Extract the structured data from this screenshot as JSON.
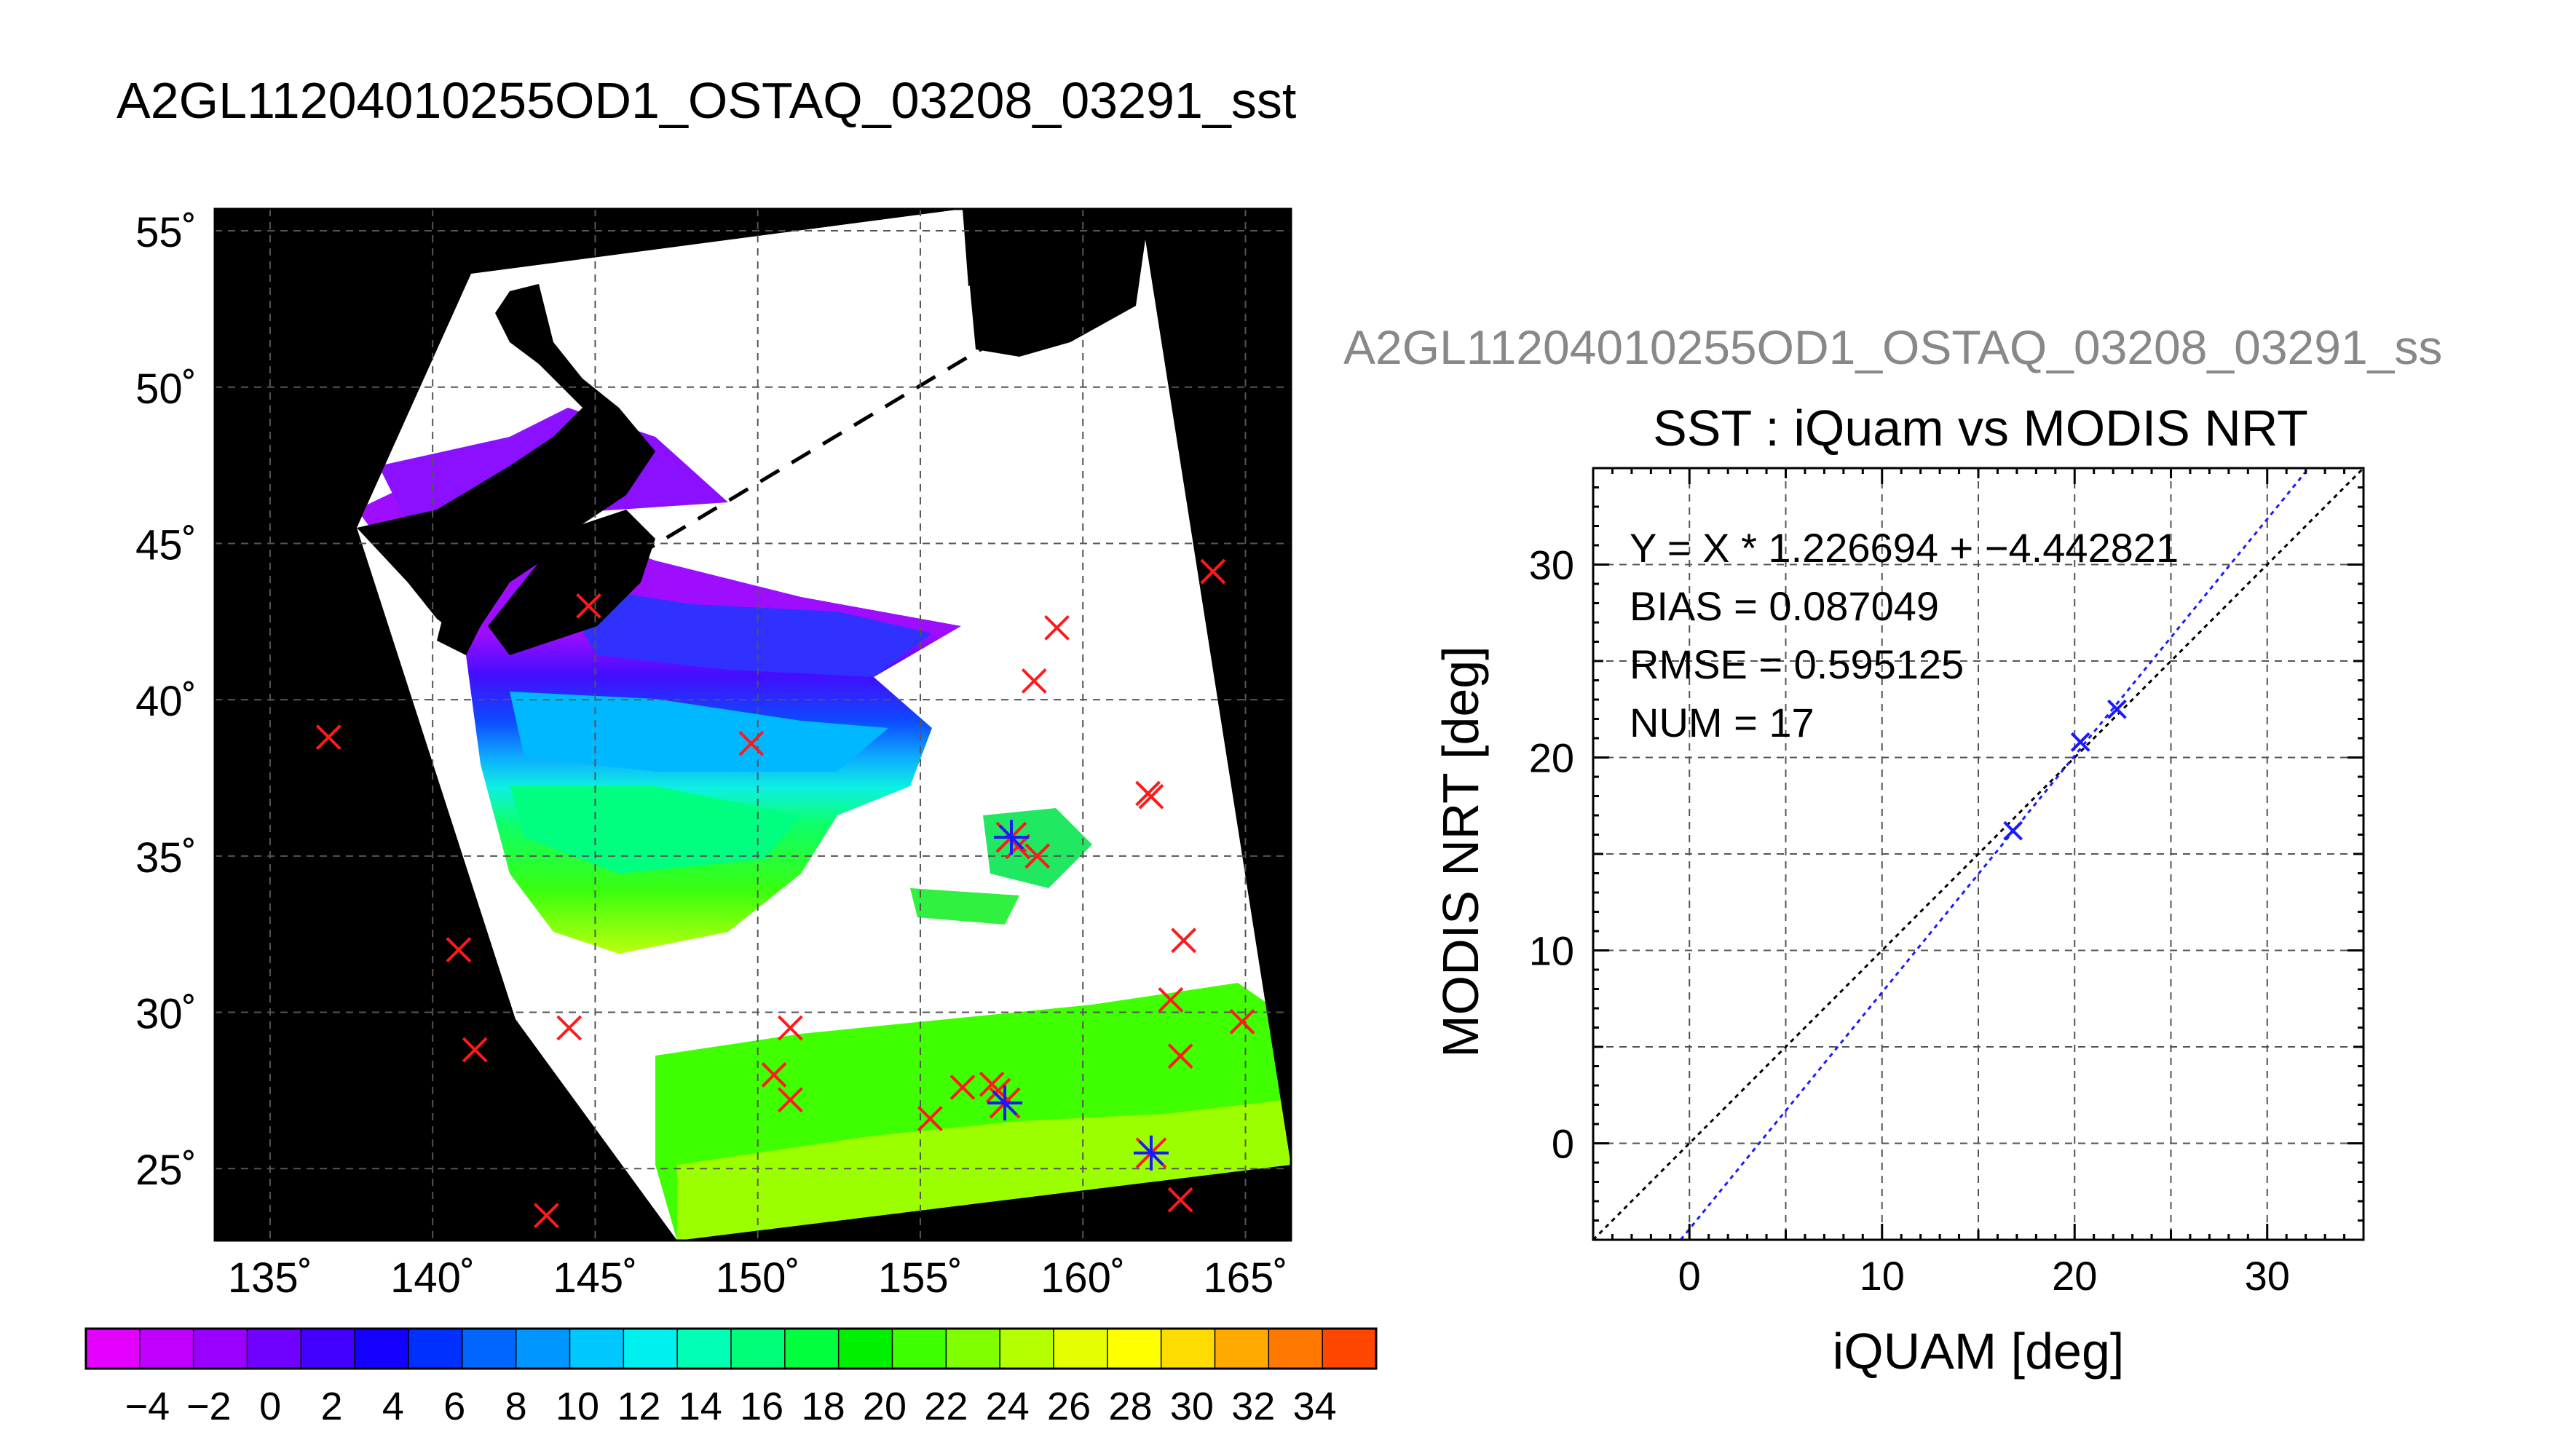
{
  "main_title": "A2GL11204010255OD1_OSTAQ_03208_03291_sst",
  "map": {
    "lat_labels": [
      "55˚",
      "50˚",
      "45˚",
      "40˚",
      "35˚",
      "30˚",
      "25˚"
    ],
    "lon_labels": [
      "135˚",
      "140˚",
      "145˚",
      "150˚",
      "155˚",
      "160˚",
      "165˚"
    ],
    "lon_range": [
      133.3,
      166.4
    ],
    "lat_range": [
      22.7,
      55.7
    ],
    "red_x_markers": [
      [
        136.8,
        38.8
      ],
      [
        144.8,
        43.0
      ],
      [
        149.8,
        38.6
      ],
      [
        158.5,
        40.6
      ],
      [
        159.2,
        42.3
      ],
      [
        164.0,
        44.1
      ],
      [
        162.0,
        37.0
      ],
      [
        162.1,
        36.9
      ],
      [
        158.6,
        35.0
      ],
      [
        158.0,
        35.3
      ],
      [
        163.1,
        32.3
      ],
      [
        162.7,
        30.4
      ],
      [
        164.9,
        29.7
      ],
      [
        163.0,
        28.6
      ],
      [
        140.8,
        32.0
      ],
      [
        141.3,
        28.8
      ],
      [
        144.2,
        29.5
      ],
      [
        151.0,
        29.5
      ],
      [
        150.5,
        28.0
      ],
      [
        151.0,
        27.2
      ],
      [
        155.3,
        26.6
      ],
      [
        156.3,
        27.6
      ],
      [
        157.2,
        27.7
      ],
      [
        157.4,
        27.5
      ],
      [
        163.0,
        24.0
      ],
      [
        143.5,
        23.5
      ]
    ],
    "blue_star_markers": [
      [
        157.8,
        35.6
      ],
      [
        162.1,
        25.5
      ],
      [
        157.6,
        27.1
      ]
    ]
  },
  "colorbar": {
    "tick_labels": [
      "−4",
      "−2",
      "0",
      "2",
      "4",
      "6",
      "8",
      "10",
      "12",
      "14",
      "16",
      "18",
      "20",
      "22",
      "24",
      "26",
      "28",
      "30",
      "32",
      "34"
    ],
    "colors": [
      "#e400ff",
      "#c000ff",
      "#9a00ff",
      "#7000ff",
      "#4400ff",
      "#1400ff",
      "#0030ff",
      "#0066ff",
      "#0096ff",
      "#00c8ff",
      "#00f0f0",
      "#00ffb4",
      "#00ff78",
      "#00ff3c",
      "#00f000",
      "#40ff00",
      "#80ff00",
      "#b4ff00",
      "#e6ff00",
      "#ffff00",
      "#ffdc00",
      "#ffaa00",
      "#ff7800",
      "#ff4600"
    ]
  },
  "scatter_header": "A2GL11204010255OD1_OSTAQ_03208_03291_ss",
  "chart_data": {
    "type": "scatter",
    "title": "SST : iQuam vs MODIS NRT",
    "xlabel": "iQUAM [deg]",
    "ylabel": "MODIS NRT [deg]",
    "xlim": [
      -5,
      35
    ],
    "ylim": [
      -5,
      35
    ],
    "x_ticks": [
      "0",
      "10",
      "20",
      "30"
    ],
    "y_ticks": [
      "0",
      "10",
      "20",
      "30"
    ],
    "grid": true,
    "points": [
      [
        16.8,
        16.2
      ],
      [
        20.3,
        20.8
      ],
      [
        22.2,
        22.5
      ]
    ],
    "regression": {
      "slope": 1.226694,
      "intercept": -4.442821
    },
    "annotations": [
      "Y = X * 1.226694 + −4.442821",
      "BIAS = 0.087049",
      "RMSE = 0.595125",
      "NUM = 17"
    ]
  }
}
